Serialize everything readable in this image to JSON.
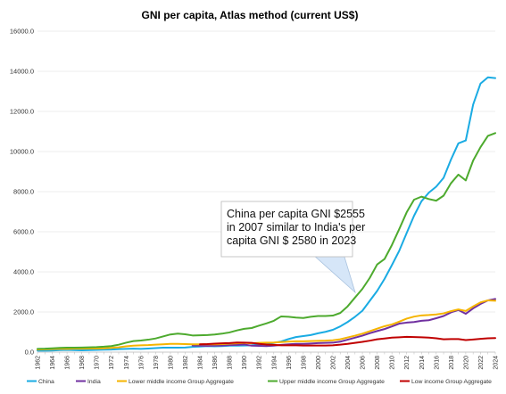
{
  "chart_data": {
    "type": "line",
    "title": "GNI per capita, Atlas method (current US$)",
    "xlabel": "",
    "ylabel": "",
    "ylim": [
      0,
      16000
    ],
    "yticks": [
      "0.0",
      "2000.0",
      "4000.0",
      "6000.0",
      "8000.0",
      "10000.0",
      "12000.0",
      "14000.0",
      "16000.0"
    ],
    "grid": true,
    "legend": "bottom",
    "x": [
      1962,
      1963,
      1964,
      1965,
      1966,
      1967,
      1968,
      1969,
      1970,
      1971,
      1972,
      1973,
      1974,
      1975,
      1976,
      1977,
      1978,
      1979,
      1980,
      1981,
      1982,
      1983,
      1984,
      1985,
      1986,
      1987,
      1988,
      1989,
      1990,
      1991,
      1992,
      1993,
      1994,
      1995,
      1996,
      1997,
      1998,
      1999,
      2000,
      2001,
      2002,
      2003,
      2004,
      2005,
      2006,
      2007,
      2008,
      2009,
      2010,
      2011,
      2012,
      2013,
      2014,
      2015,
      2016,
      2017,
      2018,
      2019,
      2020,
      2021,
      2022,
      2023,
      2024
    ],
    "xtick_labels": [
      "1962",
      "1964",
      "1966",
      "1968",
      "1970",
      "1972",
      "1974",
      "1976",
      "1978",
      "1980",
      "1982",
      "1984",
      "1986",
      "1988",
      "1990",
      "1992",
      "1994",
      "1996",
      "1998",
      "2000",
      "2002",
      "2004",
      "2006",
      "2008",
      "2010",
      "2012",
      "2014",
      "2016",
      "2018",
      "2020",
      "2022",
      "2024"
    ],
    "series": [
      {
        "name": "China",
        "color": "#1aabe3",
        "values": [
          70,
          70,
          80,
          100,
          110,
          100,
          90,
          100,
          110,
          120,
          130,
          150,
          160,
          170,
          160,
          180,
          200,
          220,
          220,
          220,
          230,
          260,
          280,
          300,
          290,
          300,
          320,
          320,
          330,
          340,
          370,
          400,
          460,
          530,
          650,
          750,
          800,
          850,
          940,
          1010,
          1110,
          1280,
          1500,
          1760,
          2060,
          2555,
          3050,
          3650,
          4340,
          5060,
          5940,
          6800,
          7520,
          7950,
          8250,
          8690,
          9600,
          10410,
          10550,
          12340,
          13390,
          13700,
          13660
        ]
      },
      {
        "name": "India",
        "color": "#7030a0",
        "values": [
          null,
          null,
          null,
          null,
          null,
          null,
          null,
          null,
          null,
          null,
          null,
          null,
          null,
          null,
          null,
          null,
          null,
          null,
          null,
          null,
          null,
          330,
          320,
          310,
          320,
          330,
          350,
          360,
          380,
          320,
          310,
          300,
          320,
          360,
          390,
          410,
          410,
          430,
          450,
          460,
          470,
          520,
          620,
          720,
          820,
          940,
          1050,
          1150,
          1280,
          1420,
          1470,
          1500,
          1560,
          1590,
          1690,
          1800,
          1980,
          2100,
          1910,
          2180,
          2400,
          2580,
          2650
        ]
      },
      {
        "name": "Lower middle income Group Aggregate",
        "color": "#f5b400",
        "values": [
          130,
          140,
          150,
          160,
          160,
          170,
          170,
          180,
          180,
          190,
          210,
          240,
          290,
          320,
          340,
          350,
          370,
          390,
          410,
          410,
          400,
          390,
          390,
          390,
          390,
          400,
          420,
          440,
          460,
          440,
          460,
          470,
          480,
          500,
          520,
          540,
          540,
          550,
          560,
          570,
          590,
          640,
          730,
          820,
          920,
          1040,
          1170,
          1290,
          1380,
          1520,
          1670,
          1770,
          1830,
          1850,
          1880,
          1930,
          2040,
          2130,
          2050,
          2280,
          2480,
          2580,
          2560
        ]
      },
      {
        "name": "Upper middle income Group Aggregate",
        "color": "#4daa2e",
        "values": [
          160,
          170,
          190,
          210,
          220,
          220,
          230,
          240,
          250,
          270,
          300,
          370,
          470,
          550,
          580,
          620,
          680,
          780,
          880,
          920,
          890,
          830,
          840,
          850,
          880,
          920,
          980,
          1080,
          1160,
          1200,
          1320,
          1430,
          1560,
          1780,
          1760,
          1720,
          1700,
          1760,
          1800,
          1800,
          1820,
          1950,
          2280,
          2720,
          3150,
          3700,
          4370,
          4640,
          5340,
          6140,
          6970,
          7600,
          7750,
          7630,
          7550,
          7800,
          8420,
          8850,
          8560,
          9550,
          10220,
          10780,
          10920
        ]
      },
      {
        "name": "Low income Group Aggregate",
        "color": "#c00000",
        "values": [
          null,
          null,
          null,
          null,
          null,
          null,
          null,
          null,
          null,
          null,
          null,
          null,
          null,
          null,
          null,
          null,
          null,
          null,
          null,
          null,
          null,
          null,
          390,
          400,
          420,
          440,
          450,
          480,
          470,
          460,
          410,
          380,
          360,
          340,
          340,
          340,
          330,
          330,
          330,
          330,
          340,
          370,
          410,
          460,
          510,
          570,
          640,
          680,
          720,
          740,
          760,
          750,
          740,
          720,
          690,
          640,
          650,
          650,
          600,
          630,
          660,
          690,
          700
        ]
      }
    ],
    "annotation": {
      "lines": [
        "China per capita GNI $2555",
        "in 2007 similar to India's per",
        "capita GNI $ 2580 in 2023"
      ]
    }
  }
}
